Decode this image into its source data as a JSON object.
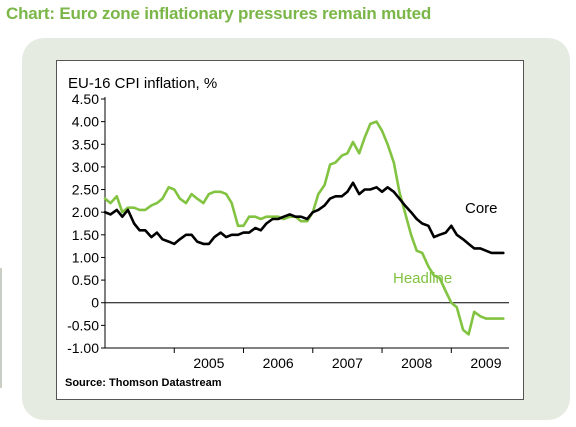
{
  "page": {
    "title": "Chart: Euro zone inflationary pressures remain muted"
  },
  "colors": {
    "title": "#7ab648",
    "panel": "#e6ebe1",
    "core": "#000000",
    "headline": "#82c341"
  },
  "chart_data": {
    "type": "line",
    "title": "EU-16 CPI inflation, %",
    "source": "Source: Thomson Datastream",
    "xlabel": "",
    "ylabel": "",
    "ylim": [
      -1.0,
      4.5
    ],
    "xlim": [
      2004.0,
      2009.833
    ],
    "yticks": [
      "4.50",
      "4.00",
      "3.50",
      "3.00",
      "2.50",
      "2.00",
      "1.50",
      "1.00",
      "0.50",
      "0",
      "-0.50",
      "-1.00"
    ],
    "ytick_values": [
      4.5,
      4.0,
      3.5,
      3.0,
      2.5,
      2.0,
      1.5,
      1.0,
      0.5,
      0,
      -0.5,
      -1.0
    ],
    "xticks": [
      "2005",
      "2006",
      "2007",
      "2008",
      "2009"
    ],
    "xtick_centers": [
      2005.5,
      2006.5,
      2007.5,
      2008.5,
      2009.5
    ],
    "xtick_dividers": [
      2005.0,
      2006.0,
      2007.0,
      2008.0,
      2009.0
    ],
    "zero_line": true,
    "grid": false,
    "series": [
      {
        "name": "Core",
        "color": "#000000",
        "x": [
          2004.0,
          2004.08,
          2004.17,
          2004.25,
          2004.33,
          2004.42,
          2004.5,
          2004.58,
          2004.67,
          2004.75,
          2004.83,
          2004.92,
          2005.0,
          2005.08,
          2005.17,
          2005.25,
          2005.33,
          2005.42,
          2005.5,
          2005.58,
          2005.67,
          2005.75,
          2005.83,
          2005.92,
          2006.0,
          2006.08,
          2006.17,
          2006.25,
          2006.33,
          2006.42,
          2006.5,
          2006.58,
          2006.67,
          2006.75,
          2006.83,
          2006.92,
          2007.0,
          2007.08,
          2007.17,
          2007.25,
          2007.33,
          2007.42,
          2007.5,
          2007.58,
          2007.67,
          2007.75,
          2007.83,
          2007.92,
          2008.0,
          2008.08,
          2008.17,
          2008.25,
          2008.33,
          2008.42,
          2008.5,
          2008.58,
          2008.67,
          2008.75,
          2008.83,
          2008.92,
          2009.0,
          2009.08,
          2009.17,
          2009.25,
          2009.33,
          2009.42,
          2009.5,
          2009.58,
          2009.67,
          2009.75
        ],
        "y": [
          2.0,
          1.95,
          2.05,
          1.9,
          2.05,
          1.75,
          1.6,
          1.6,
          1.45,
          1.55,
          1.4,
          1.35,
          1.3,
          1.4,
          1.5,
          1.5,
          1.35,
          1.3,
          1.3,
          1.45,
          1.55,
          1.45,
          1.5,
          1.5,
          1.55,
          1.55,
          1.65,
          1.6,
          1.75,
          1.85,
          1.85,
          1.9,
          1.95,
          1.9,
          1.9,
          1.85,
          2.0,
          2.05,
          2.15,
          2.3,
          2.35,
          2.35,
          2.45,
          2.65,
          2.4,
          2.5,
          2.5,
          2.55,
          2.45,
          2.55,
          2.45,
          2.3,
          2.15,
          2.0,
          1.85,
          1.75,
          1.7,
          1.45,
          1.5,
          1.55,
          1.7,
          1.5,
          1.4,
          1.3,
          1.2,
          1.2,
          1.15,
          1.1,
          1.1,
          1.1
        ]
      },
      {
        "name": "Headline",
        "color": "#82c341",
        "x": [
          2004.0,
          2004.08,
          2004.17,
          2004.25,
          2004.33,
          2004.42,
          2004.5,
          2004.58,
          2004.67,
          2004.75,
          2004.83,
          2004.92,
          2005.0,
          2005.08,
          2005.17,
          2005.25,
          2005.33,
          2005.42,
          2005.5,
          2005.58,
          2005.67,
          2005.75,
          2005.83,
          2005.92,
          2006.0,
          2006.08,
          2006.17,
          2006.25,
          2006.33,
          2006.42,
          2006.5,
          2006.58,
          2006.67,
          2006.75,
          2006.83,
          2006.92,
          2007.0,
          2007.08,
          2007.17,
          2007.25,
          2007.33,
          2007.42,
          2007.5,
          2007.58,
          2007.67,
          2007.75,
          2007.83,
          2007.92,
          2008.0,
          2008.08,
          2008.17,
          2008.25,
          2008.33,
          2008.42,
          2008.5,
          2008.58,
          2008.67,
          2008.75,
          2008.83,
          2008.92,
          2009.0,
          2009.08,
          2009.17,
          2009.25,
          2009.33,
          2009.42,
          2009.5,
          2009.58,
          2009.67,
          2009.75
        ],
        "y": [
          2.3,
          2.2,
          2.35,
          2.0,
          2.1,
          2.1,
          2.05,
          2.05,
          2.15,
          2.2,
          2.3,
          2.55,
          2.5,
          2.3,
          2.2,
          2.4,
          2.3,
          2.2,
          2.4,
          2.45,
          2.45,
          2.4,
          2.2,
          1.7,
          1.7,
          1.9,
          1.9,
          1.85,
          1.9,
          1.9,
          1.9,
          1.85,
          1.9,
          1.9,
          1.8,
          1.8,
          2.0,
          2.4,
          2.6,
          3.05,
          3.1,
          3.25,
          3.3,
          3.55,
          3.3,
          3.65,
          3.95,
          4.0,
          3.8,
          3.5,
          3.1,
          2.45,
          2.0,
          1.5,
          1.15,
          1.1,
          0.8,
          0.6,
          0.55,
          0.25,
          0.0,
          -0.1,
          -0.6,
          -0.7,
          -0.2,
          -0.3,
          -0.35,
          -0.35,
          -0.35,
          -0.35
        ]
      }
    ],
    "annotations": [
      {
        "text": "Core",
        "series": "Core"
      },
      {
        "text": "Headline",
        "series": "Headline"
      }
    ]
  }
}
